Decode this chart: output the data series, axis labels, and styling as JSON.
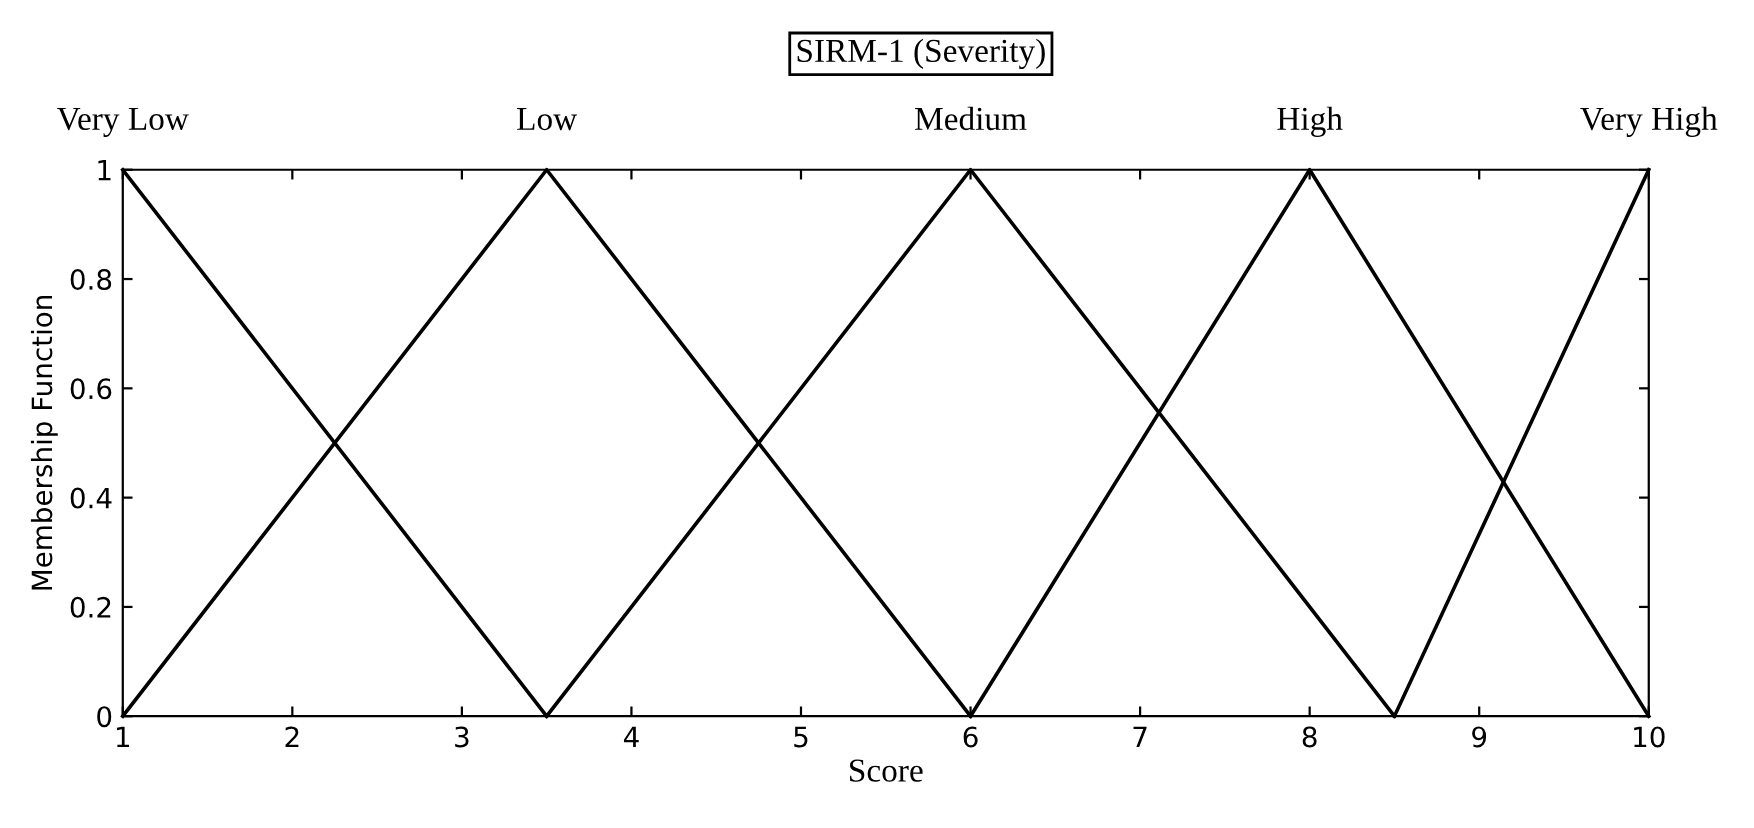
{
  "chart_data": {
    "type": "line",
    "title": "SIRM-1 (Severity)",
    "xlabel": "Score",
    "ylabel": "Membership Function",
    "series": [
      {
        "name": "Very Low",
        "color": "#000000",
        "x": [
          1,
          3.5
        ],
        "values": [
          1,
          0
        ]
      },
      {
        "name": "Low",
        "color": "#000000",
        "x": [
          1,
          3.5,
          6
        ],
        "values": [
          0,
          1,
          0
        ]
      },
      {
        "name": "Medium",
        "color": "#000000",
        "x": [
          3.5,
          6,
          8.5
        ],
        "values": [
          0,
          1,
          0
        ]
      },
      {
        "name": "High",
        "color": "#000000",
        "x": [
          6,
          8,
          10
        ],
        "values": [
          0,
          1,
          0
        ]
      },
      {
        "name": "Very High",
        "color": "#000000",
        "x": [
          8.5,
          10
        ],
        "values": [
          0,
          1
        ]
      }
    ],
    "xlim": [
      1,
      10
    ],
    "ylim": [
      0,
      1
    ],
    "xticks": [
      1,
      2,
      3,
      4,
      5,
      6,
      7,
      8,
      9,
      10
    ],
    "yticks": [
      0,
      0.2,
      0.4,
      0.6,
      0.8,
      1
    ],
    "grid": false,
    "legend": false,
    "marker": "none",
    "line_style": "solid"
  }
}
